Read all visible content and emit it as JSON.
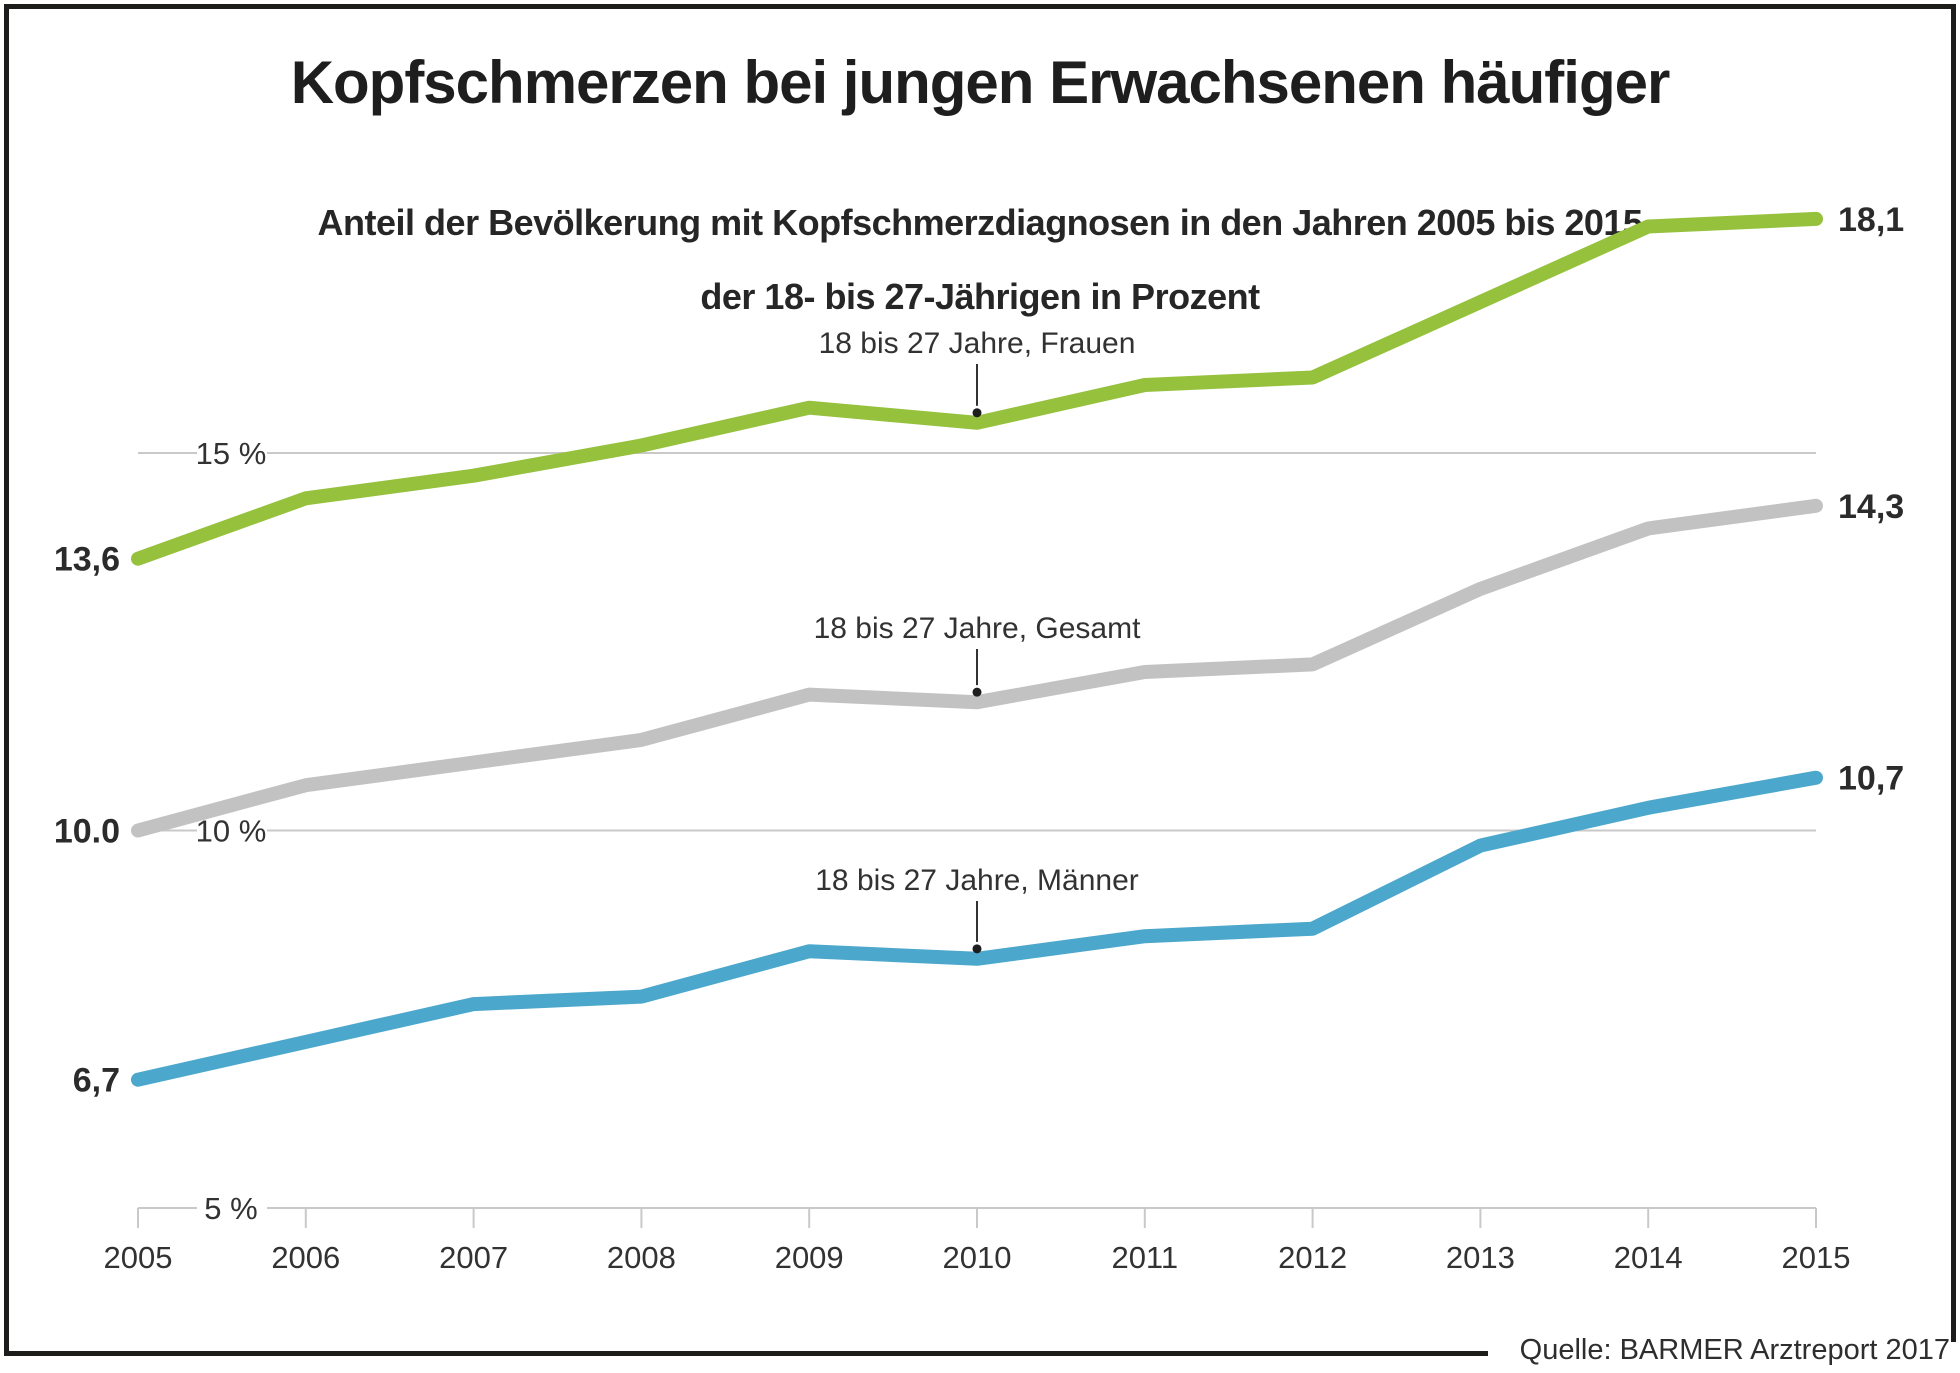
{
  "title": "Kopfschmerzen bei jungen Erwachsenen häufiger",
  "subtitle_line1": "Anteil der Bevölkerung mit Kopfschmerzdiagnosen in den Jahren 2005 bis 2015",
  "subtitle_line2": "der 18- bis 27-Jährigen in Prozent",
  "source": "Quelle: BARMER Arztreport 2017",
  "colors": {
    "frauen_green": "#95c13c",
    "gesamt_gray": "#c2c2c2",
    "maenner_blue": "#4ba7cb",
    "gridline_gray": "#c9c9c9",
    "text_dark": "#323232",
    "frame_black": "#1d1d1b"
  },
  "chart_data": {
    "type": "line",
    "categories": [
      2005,
      2006,
      2007,
      2008,
      2009,
      2010,
      2011,
      2012,
      2013,
      2014,
      2015
    ],
    "series": [
      {
        "name": "18 bis 27 Jahre, Frauen",
        "color": "#95c13c",
        "values": [
          13.6,
          14.4,
          14.7,
          15.1,
          15.6,
          15.4,
          15.9,
          16.0,
          17.0,
          18.0,
          18.1
        ],
        "start_label": "13,6",
        "end_label": "18,1"
      },
      {
        "name": "18 bis 27 Jahre, Gesamt",
        "color": "#c2c2c2",
        "values": [
          10.0,
          10.6,
          10.9,
          11.2,
          11.8,
          11.7,
          12.1,
          12.2,
          13.2,
          14.0,
          14.3
        ],
        "start_label": "10.0",
        "end_label": "14,3"
      },
      {
        "name": "18 bis 27 Jahre, Männer",
        "color": "#4ba7cb",
        "values": [
          6.7,
          7.2,
          7.7,
          7.8,
          8.4,
          8.3,
          8.6,
          8.7,
          9.8,
          10.3,
          10.7
        ],
        "start_label": "6,7",
        "end_label": "10,7"
      }
    ],
    "gridlines": [
      {
        "value": 15,
        "label": "15 %"
      },
      {
        "value": 10,
        "label": "10 %"
      },
      {
        "value": 5,
        "label": "5 %"
      }
    ],
    "ylim": [
      5,
      19
    ],
    "legend_position": "inline-annotations",
    "grid": "horizontal-only"
  }
}
